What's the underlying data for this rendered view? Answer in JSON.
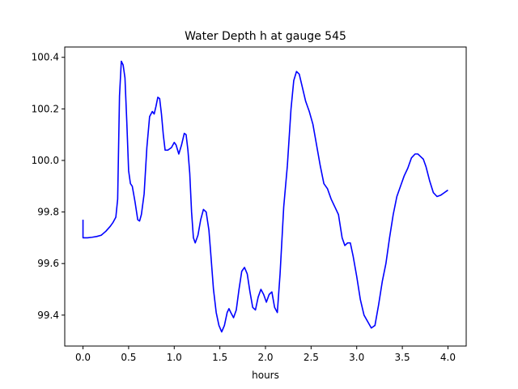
{
  "chart_data": {
    "type": "line",
    "title": "Water Depth h at gauge 545",
    "xlabel": "hours",
    "ylabel": "",
    "xlim": [
      -0.2,
      4.2
    ],
    "ylim": [
      99.28,
      100.44
    ],
    "xticks": [
      0.0,
      0.5,
      1.0,
      1.5,
      2.0,
      2.5,
      3.0,
      3.5,
      4.0
    ],
    "xtick_labels": [
      "0.0",
      "0.5",
      "1.0",
      "1.5",
      "2.0",
      "2.5",
      "3.0",
      "3.5",
      "4.0"
    ],
    "yticks": [
      99.4,
      99.6,
      99.8,
      100.0,
      100.2,
      100.4
    ],
    "ytick_labels": [
      "99.4",
      "99.6",
      "99.8",
      "100.0",
      "100.2",
      "100.4"
    ],
    "grid": false,
    "series": [
      {
        "color": "#0000ff",
        "x": [
          0.0,
          0.0,
          0.05,
          0.1,
          0.15,
          0.2,
          0.25,
          0.3,
          0.33,
          0.36,
          0.38,
          0.4,
          0.42,
          0.44,
          0.46,
          0.48,
          0.5,
          0.52,
          0.54,
          0.57,
          0.6,
          0.62,
          0.64,
          0.67,
          0.7,
          0.73,
          0.76,
          0.78,
          0.8,
          0.82,
          0.84,
          0.86,
          0.88,
          0.9,
          0.93,
          0.97,
          1.0,
          1.02,
          1.05,
          1.08,
          1.11,
          1.13,
          1.15,
          1.17,
          1.19,
          1.21,
          1.23,
          1.26,
          1.29,
          1.32,
          1.35,
          1.38,
          1.4,
          1.43,
          1.46,
          1.49,
          1.52,
          1.55,
          1.58,
          1.6,
          1.62,
          1.65,
          1.68,
          1.71,
          1.74,
          1.77,
          1.8,
          1.83,
          1.86,
          1.89,
          1.92,
          1.95,
          1.98,
          2.01,
          2.04,
          2.07,
          2.1,
          2.13,
          2.16,
          2.2,
          2.24,
          2.28,
          2.31,
          2.34,
          2.37,
          2.4,
          2.44,
          2.48,
          2.52,
          2.56,
          2.6,
          2.64,
          2.68,
          2.72,
          2.76,
          2.8,
          2.84,
          2.87,
          2.9,
          2.93,
          2.96,
          3.0,
          3.04,
          3.08,
          3.12,
          3.16,
          3.2,
          3.24,
          3.28,
          3.32,
          3.36,
          3.4,
          3.44,
          3.48,
          3.52,
          3.56,
          3.6,
          3.64,
          3.67,
          3.7,
          3.73,
          3.76,
          3.8,
          3.84,
          3.88,
          3.92,
          3.96,
          4.0
        ],
        "y": [
          99.77,
          99.7,
          99.7,
          99.702,
          99.705,
          99.71,
          99.725,
          99.745,
          99.76,
          99.78,
          99.85,
          100.25,
          100.385,
          100.37,
          100.32,
          100.15,
          99.96,
          99.91,
          99.9,
          99.84,
          99.77,
          99.765,
          99.79,
          99.87,
          100.05,
          100.17,
          100.19,
          100.18,
          100.21,
          100.245,
          100.24,
          100.18,
          100.1,
          100.04,
          100.04,
          100.05,
          100.07,
          100.06,
          100.025,
          100.06,
          100.105,
          100.1,
          100.04,
          99.95,
          99.8,
          99.7,
          99.68,
          99.71,
          99.77,
          99.81,
          99.8,
          99.73,
          99.64,
          99.5,
          99.41,
          99.36,
          99.335,
          99.36,
          99.41,
          99.425,
          99.41,
          99.39,
          99.42,
          99.5,
          99.57,
          99.585,
          99.56,
          99.49,
          99.43,
          99.42,
          99.47,
          99.5,
          99.48,
          99.45,
          99.48,
          99.49,
          99.43,
          99.41,
          99.56,
          99.82,
          99.98,
          100.2,
          100.31,
          100.345,
          100.335,
          100.29,
          100.23,
          100.19,
          100.14,
          100.06,
          99.98,
          99.91,
          99.89,
          99.85,
          99.82,
          99.79,
          99.7,
          99.67,
          99.68,
          99.68,
          99.63,
          99.55,
          99.46,
          99.4,
          99.375,
          99.35,
          99.36,
          99.44,
          99.53,
          99.6,
          99.7,
          99.79,
          99.86,
          99.9,
          99.94,
          99.97,
          100.01,
          100.025,
          100.025,
          100.015,
          100.005,
          99.975,
          99.92,
          99.875,
          99.86,
          99.865,
          99.875,
          99.885
        ]
      }
    ]
  }
}
